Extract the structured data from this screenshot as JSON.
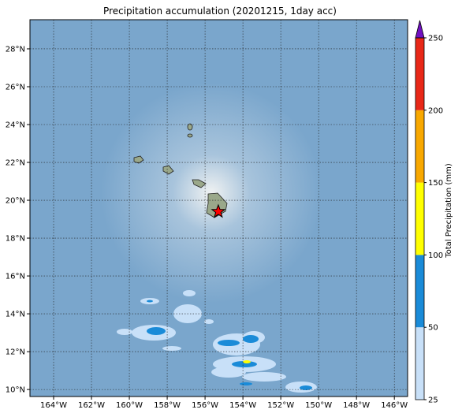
{
  "chart_data": {
    "type": "map",
    "title": "Precipitation accumulation (20201215, 1day acc)",
    "xlim": [
      -165.25,
      -145.3
    ],
    "ylim": [
      9.63,
      29.54
    ],
    "xticks": [
      {
        "value": -164,
        "label": "164°W"
      },
      {
        "value": -162,
        "label": "162°W"
      },
      {
        "value": -160,
        "label": "160°W"
      },
      {
        "value": -158,
        "label": "158°W"
      },
      {
        "value": -156,
        "label": "156°W"
      },
      {
        "value": -154,
        "label": "154°W"
      },
      {
        "value": -152,
        "label": "152°W"
      },
      {
        "value": -150,
        "label": "150°W"
      },
      {
        "value": -148,
        "label": "148°W"
      },
      {
        "value": -146,
        "label": "146°W"
      }
    ],
    "yticks": [
      {
        "value": 10,
        "label": "10°N"
      },
      {
        "value": 12,
        "label": "12°N"
      },
      {
        "value": 14,
        "label": "14°N"
      },
      {
        "value": 16,
        "label": "16°N"
      },
      {
        "value": 18,
        "label": "18°N"
      },
      {
        "value": 20,
        "label": "20°N"
      },
      {
        "value": 22,
        "label": "22°N"
      },
      {
        "value": 24,
        "label": "24°N"
      },
      {
        "value": 26,
        "label": "26°N"
      },
      {
        "value": 28,
        "label": "28°N"
      }
    ],
    "grid": true,
    "marker": {
      "lon": -155.3,
      "lat": 19.4,
      "color": "#ff0000"
    },
    "colorbar": {
      "label": "Total Precipitation (mm)",
      "levels": [
        25,
        50,
        100,
        150,
        200,
        250
      ],
      "colors": [
        "#c8e0f8",
        "#1a8bd8",
        "#ffff00",
        "#f8a800",
        "#e82818"
      ],
      "extend_color": "#7010c0"
    }
  }
}
